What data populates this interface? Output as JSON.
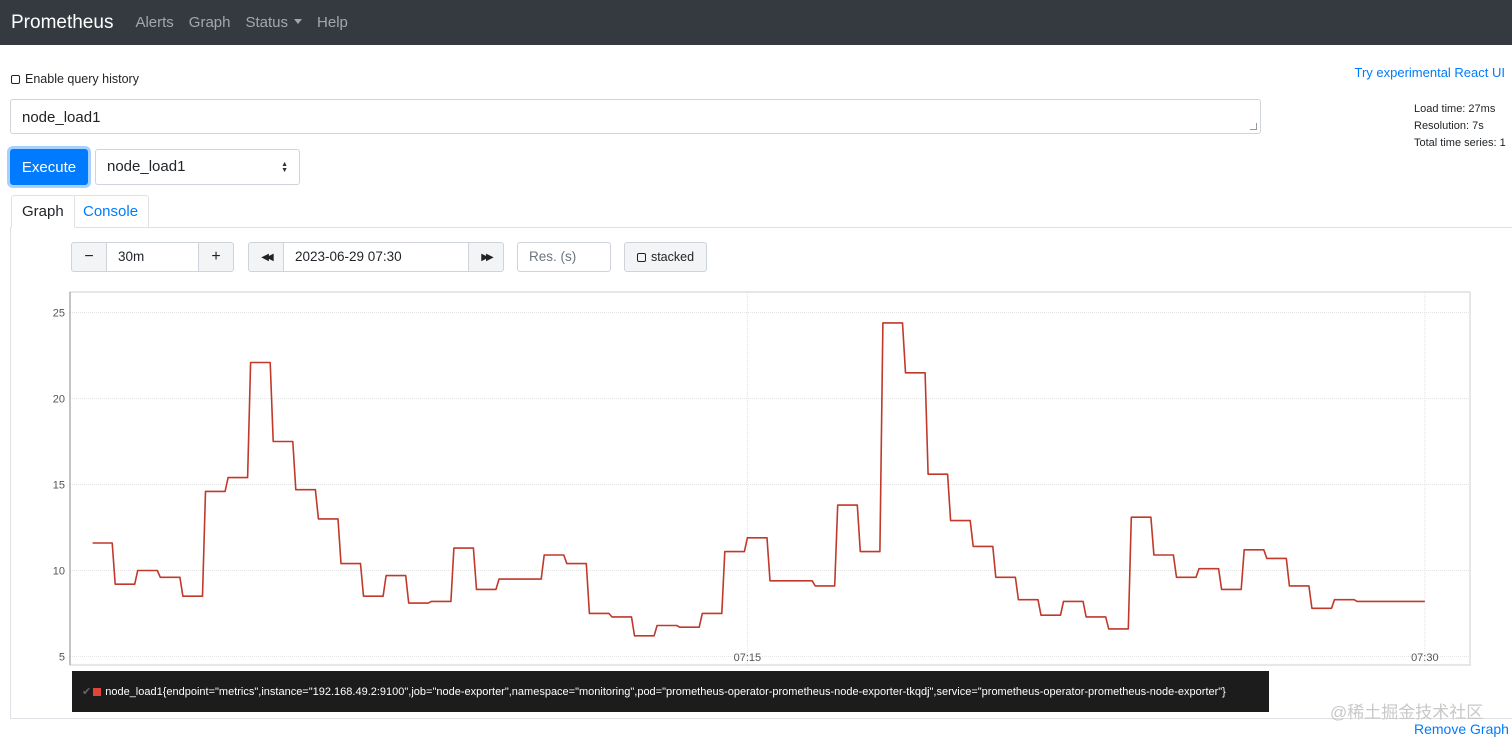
{
  "navbar": {
    "brand": "Prometheus",
    "links": {
      "alerts": "Alerts",
      "graph": "Graph",
      "status": "Status",
      "help": "Help"
    }
  },
  "query_history_label": "Enable query history",
  "react_ui_link": "Try experimental React UI",
  "query": {
    "value": "node_load1"
  },
  "stats": {
    "load_time": "Load time: 27ms",
    "resolution": "Resolution: 7s",
    "total_series": "Total time series: 1"
  },
  "execute_label": "Execute",
  "metric_select": {
    "selected": "node_load1"
  },
  "tabs": {
    "graph": "Graph",
    "console": "Console"
  },
  "controls": {
    "minus_label": "−",
    "range": "30m",
    "plus_label": "+",
    "back_label": "◀◀",
    "end_time": "2023-06-29 07:30",
    "forward_label": "▶▶",
    "resolution_placeholder": "Res. (s)",
    "stacked_label": "stacked"
  },
  "chart_data": {
    "type": "line",
    "x_tick_labels": [
      "07:15",
      "07:30"
    ],
    "y_ticks": [
      5,
      10,
      15,
      20,
      25
    ],
    "ylim": [
      4.5,
      26.2
    ],
    "grid": true,
    "series": [
      {
        "name": "node_load1{endpoint=\"metrics\",instance=\"192.168.49.2:9100\",job=\"node-exporter\",namespace=\"monitoring\",pod=\"prometheus-operator-prometheus-node-exporter-tkqdj\",service=\"prometheus-operator-prometheus-node-exporter\"}",
        "color": "#c0392b",
        "steps": [
          [
            "07:00:30",
            11.6
          ],
          [
            "07:01:00",
            9.2
          ],
          [
            "07:01:30",
            10.0
          ],
          [
            "07:02:00",
            9.6
          ],
          [
            "07:02:30",
            8.5
          ],
          [
            "07:03:00",
            14.6
          ],
          [
            "07:03:30",
            15.4
          ],
          [
            "07:04:00",
            22.1
          ],
          [
            "07:04:30",
            17.5
          ],
          [
            "07:05:00",
            14.7
          ],
          [
            "07:05:30",
            13.0
          ],
          [
            "07:06:00",
            10.4
          ],
          [
            "07:06:30",
            8.5
          ],
          [
            "07:07:00",
            9.7
          ],
          [
            "07:07:30",
            8.1
          ],
          [
            "07:08:00",
            8.2
          ],
          [
            "07:08:30",
            11.3
          ],
          [
            "07:09:00",
            8.9
          ],
          [
            "07:09:30",
            9.5
          ],
          [
            "07:10:30",
            10.9
          ],
          [
            "07:11:00",
            10.4
          ],
          [
            "07:11:30",
            7.5
          ],
          [
            "07:12:00",
            7.3
          ],
          [
            "07:12:30",
            6.2
          ],
          [
            "07:13:00",
            6.8
          ],
          [
            "07:13:30",
            6.7
          ],
          [
            "07:14:00",
            7.5
          ],
          [
            "07:14:30",
            11.1
          ],
          [
            "07:15:00",
            11.9
          ],
          [
            "07:15:30",
            9.4
          ],
          [
            "07:16:30",
            9.1
          ],
          [
            "07:17:00",
            13.8
          ],
          [
            "07:17:30",
            11.1
          ],
          [
            "07:18:00",
            24.4
          ],
          [
            "07:18:30",
            21.5
          ],
          [
            "07:19:00",
            15.6
          ],
          [
            "07:19:30",
            12.9
          ],
          [
            "07:20:00",
            11.4
          ],
          [
            "07:20:30",
            9.6
          ],
          [
            "07:21:00",
            8.3
          ],
          [
            "07:21:30",
            7.4
          ],
          [
            "07:22:00",
            8.2
          ],
          [
            "07:22:30",
            7.3
          ],
          [
            "07:23:00",
            6.6
          ],
          [
            "07:23:30",
            13.1
          ],
          [
            "07:24:00",
            10.9
          ],
          [
            "07:24:30",
            9.6
          ],
          [
            "07:25:00",
            10.1
          ],
          [
            "07:25:30",
            8.9
          ],
          [
            "07:26:00",
            11.2
          ],
          [
            "07:26:30",
            10.7
          ],
          [
            "07:27:00",
            9.1
          ],
          [
            "07:27:30",
            7.8
          ],
          [
            "07:28:00",
            8.3
          ],
          [
            "07:28:30",
            8.2
          ],
          [
            "07:30:00",
            8.2
          ]
        ]
      }
    ]
  },
  "legend_series_label": "node_load1{endpoint=\"metrics\",instance=\"192.168.49.2:9100\",job=\"node-exporter\",namespace=\"monitoring\",pod=\"prometheus-operator-prometheus-node-exporter-tkqdj\",service=\"prometheus-operator-prometheus-node-exporter\"}",
  "watermark": "@稀土掘金技术社区",
  "remove_graph_label": "Remove Graph"
}
